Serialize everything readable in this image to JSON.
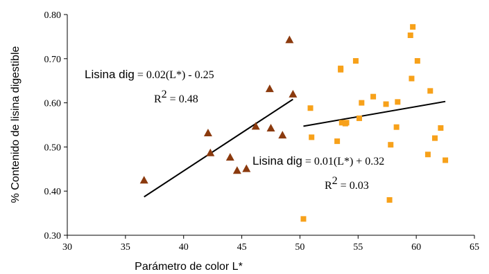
{
  "chart_data": {
    "type": "scatter",
    "xlabel": "Parámetro de color L*",
    "ylabel": "% Contenido de lisina digestible",
    "xlim": [
      30,
      65
    ],
    "ylim": [
      0.3,
      0.8
    ],
    "xticks": [
      "30",
      "35",
      "40",
      "45",
      "50",
      "55",
      "60",
      "65"
    ],
    "yticks": [
      "0.30",
      "0.40",
      "0.50",
      "0.60",
      "0.70",
      "0.80"
    ],
    "grid": false,
    "series": [
      {
        "marker": "triangle",
        "color": "#8B3A0E",
        "points": [
          [
            36.6,
            0.425
          ],
          [
            42.1,
            0.532
          ],
          [
            42.3,
            0.487
          ],
          [
            44.0,
            0.477
          ],
          [
            44.6,
            0.447
          ],
          [
            45.4,
            0.451
          ],
          [
            46.2,
            0.547
          ],
          [
            47.4,
            0.632
          ],
          [
            47.5,
            0.543
          ],
          [
            48.5,
            0.527
          ],
          [
            49.1,
            0.743
          ],
          [
            49.4,
            0.62
          ]
        ],
        "trendline": {
          "x": [
            36.6,
            49.4
          ],
          "y": [
            0.387,
            0.608
          ]
        },
        "equation_lhs": "Lisina dig",
        "equation_rhs": " = 0.02(L*) - 0.25",
        "r2_label": "R",
        "r2_value": " = 0.48"
      },
      {
        "marker": "square",
        "color": "#F7A11A",
        "points": [
          [
            50.3,
            0.337
          ],
          [
            50.9,
            0.588
          ],
          [
            51.0,
            0.522
          ],
          [
            53.2,
            0.513
          ],
          [
            53.5,
            0.675
          ],
          [
            53.5,
            0.678
          ],
          [
            53.6,
            0.555
          ],
          [
            53.9,
            0.553
          ],
          [
            54.0,
            0.555
          ],
          [
            54.8,
            0.695
          ],
          [
            55.1,
            0.565
          ],
          [
            55.3,
            0.6
          ],
          [
            56.3,
            0.614
          ],
          [
            57.4,
            0.597
          ],
          [
            57.7,
            0.38
          ],
          [
            57.8,
            0.505
          ],
          [
            58.3,
            0.545
          ],
          [
            58.4,
            0.602
          ],
          [
            59.5,
            0.753
          ],
          [
            59.6,
            0.655
          ],
          [
            59.7,
            0.772
          ],
          [
            60.1,
            0.695
          ],
          [
            61.0,
            0.483
          ],
          [
            61.2,
            0.627
          ],
          [
            61.6,
            0.52
          ],
          [
            62.1,
            0.543
          ],
          [
            62.5,
            0.47
          ]
        ],
        "trendline": {
          "x": [
            50.3,
            62.5
          ],
          "y": [
            0.547,
            0.603
          ]
        },
        "equation_lhs": "Lisina dig",
        "equation_rhs": " = 0.01(L*) + 0.32",
        "r2_label": "R",
        "r2_value": " = 0.03"
      }
    ]
  }
}
